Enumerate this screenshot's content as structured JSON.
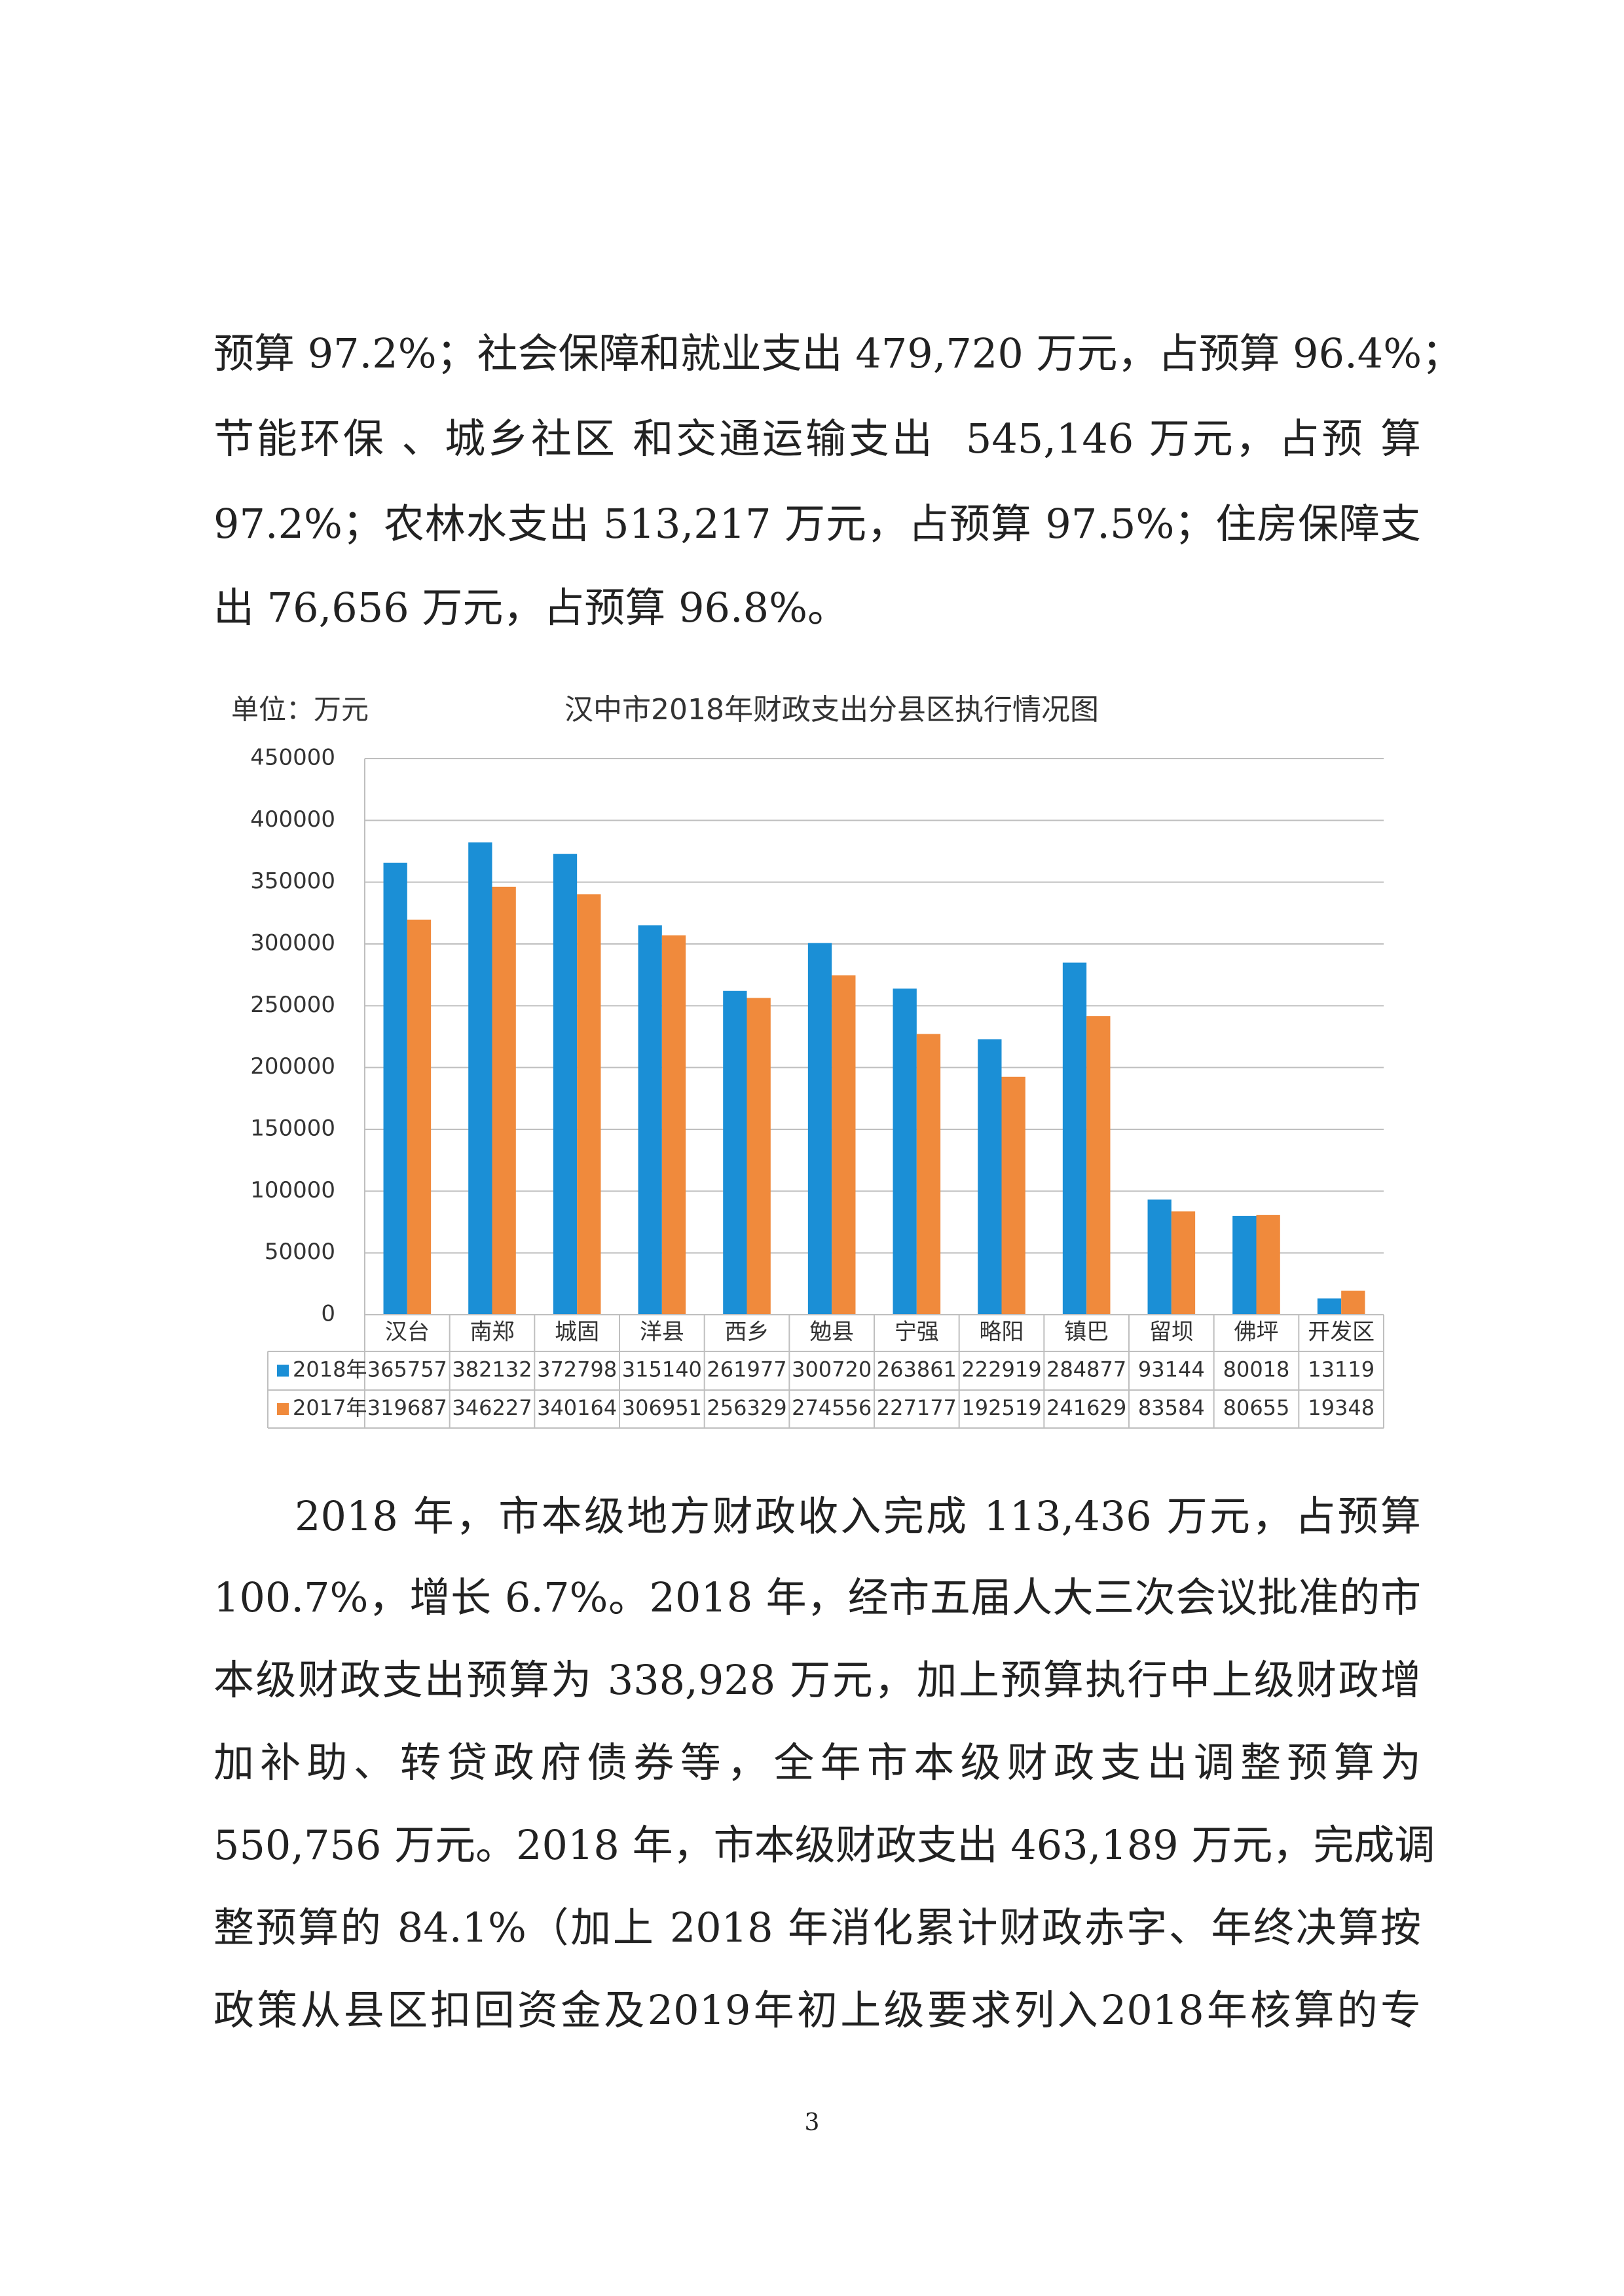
{
  "paragraphs": [
    {
      "lines": [
        "预算 97.2%；社会保障和就业支出 479,720 万元，占预算 96.4%；",
        "节能环保 、城乡社区 和交通运输支出  545,146 万元，占预 算",
        "97.2%；农林水支出 513,217 万元，占预算 97.5%；住房保障支",
        "出 76,656 万元，占预算 96.8%。"
      ]
    },
    {
      "lines": [
        "2018 年，市本级地方财政收入完成 113,436 万元，占预算",
        "100.7%，增长 6.7%。2018 年，经市五届人大三次会议批准的市",
        "本级财政支出预算为 338,928 万元，加上预算执行中上级财政增",
        "加补助、转贷政府债券等，全年市本级财政支出调整预算为",
        "550,756 万元。2018 年，市本级财政支出 463,189 万元，完成调",
        "整预算的 84.1%（加上 2018 年消化累计财政赤字、年终决算按",
        "政策从县区扣回资金及2019年初上级要求列入2018年核算的专"
      ]
    }
  ],
  "chart_data": {
    "type": "bar",
    "title": "汉中市2018年财政支出分县区执行情况图",
    "unit_label": "单位：万元",
    "categories": [
      "汉台",
      "南郑",
      "城固",
      "洋县",
      "西乡",
      "勉县",
      "宁强",
      "略阳",
      "镇巴",
      "留坝",
      "佛坪",
      "开发区"
    ],
    "series": [
      {
        "name": "2018年",
        "color": "#1b8fd6",
        "values": [
          365757,
          382132,
          372798,
          315140,
          261977,
          300720,
          263861,
          222919,
          284877,
          93144,
          80018,
          13119
        ]
      },
      {
        "name": "2017年",
        "color": "#f08a3c",
        "values": [
          319687,
          346227,
          340164,
          306951,
          256329,
          274556,
          227177,
          192519,
          241629,
          83584,
          80655,
          19348
        ]
      }
    ],
    "ylim": [
      0,
      450000
    ],
    "yticks": [
      0,
      50000,
      100000,
      150000,
      200000,
      250000,
      300000,
      350000,
      400000,
      450000
    ],
    "grid": true,
    "data_table": true
  },
  "page_number": "3"
}
